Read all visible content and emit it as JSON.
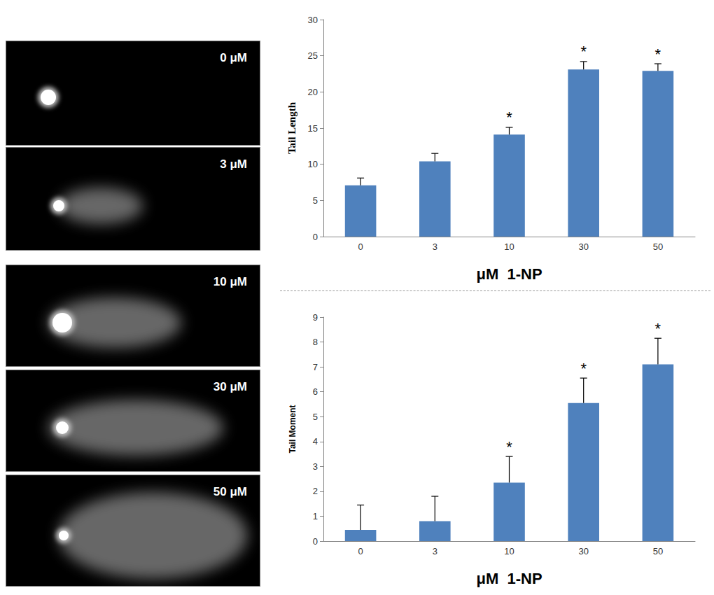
{
  "image_panels": [
    {
      "label": "0 μM"
    },
    {
      "label": "3 μM"
    },
    {
      "label": "10 μM"
    },
    {
      "label": "30 μM"
    },
    {
      "label": "50 μM"
    }
  ],
  "chart_data": [
    {
      "type": "bar",
      "ylabel": "Tail Length",
      "xlabel": "μM  1-NP",
      "categories": [
        "0",
        "3",
        "10",
        "30",
        "50"
      ],
      "values": [
        7.1,
        10.4,
        14.1,
        23.1,
        22.9
      ],
      "errors": [
        1.0,
        1.1,
        1.0,
        1.1,
        1.0
      ],
      "annotations": [
        null,
        null,
        "*",
        "*",
        "*"
      ],
      "color": "#4f81bd",
      "ylim": [
        0,
        30
      ],
      "yticks": [
        0,
        5,
        10,
        15,
        20,
        25,
        30
      ],
      "grid": false
    },
    {
      "type": "bar",
      "ylabel": "Tail Moment",
      "xlabel": "μM  1-NP",
      "categories": [
        "0",
        "3",
        "10",
        "30",
        "50"
      ],
      "values": [
        0.45,
        0.8,
        2.35,
        5.55,
        7.1
      ],
      "errors": [
        1.0,
        1.0,
        1.05,
        1.0,
        1.05
      ],
      "annotations": [
        null,
        null,
        "*",
        "*",
        "*"
      ],
      "color": "#4f81bd",
      "ylim": [
        0,
        9
      ],
      "yticks": [
        0,
        1,
        2,
        3,
        4,
        5,
        6,
        7,
        8,
        9
      ],
      "grid": false
    }
  ]
}
